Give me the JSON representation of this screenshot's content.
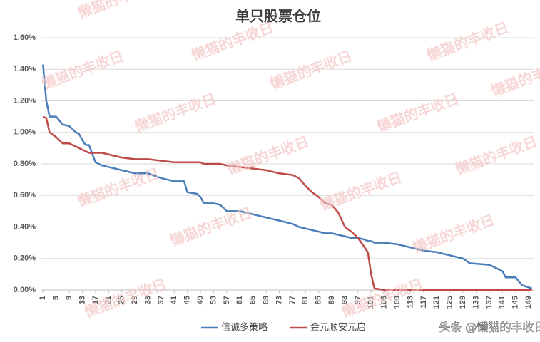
{
  "chart_data": {
    "type": "line",
    "title": "单只股票仓位",
    "x": [
      1,
      2,
      3,
      5,
      7,
      9,
      11,
      12,
      13,
      14,
      15,
      17,
      19,
      21,
      25,
      29,
      33,
      37,
      41,
      44,
      45,
      48,
      49,
      50,
      53,
      55,
      57,
      61,
      65,
      69,
      73,
      77,
      79,
      81,
      83,
      85,
      87,
      89,
      91,
      93,
      95,
      97,
      99,
      100,
      101,
      102,
      105,
      109,
      113,
      117,
      121,
      125,
      129,
      131,
      137,
      141,
      142,
      145,
      147,
      150
    ],
    "series": [
      {
        "name": "信诚多策略",
        "color": "#4a7ebb",
        "values": [
          1.43,
          1.2,
          1.1,
          1.1,
          1.05,
          1.04,
          1.0,
          0.99,
          0.95,
          0.92,
          0.92,
          0.81,
          0.79,
          0.78,
          0.76,
          0.74,
          0.74,
          0.71,
          0.69,
          0.69,
          0.62,
          0.61,
          0.59,
          0.55,
          0.55,
          0.54,
          0.5,
          0.5,
          0.48,
          0.46,
          0.44,
          0.42,
          0.4,
          0.39,
          0.38,
          0.37,
          0.36,
          0.36,
          0.35,
          0.34,
          0.33,
          0.33,
          0.32,
          0.31,
          0.31,
          0.3,
          0.3,
          0.29,
          0.27,
          0.25,
          0.24,
          0.22,
          0.2,
          0.17,
          0.16,
          0.12,
          0.08,
          0.08,
          0.03,
          0.01
        ]
      },
      {
        "name": "金元顺安元启",
        "color": "#be4b48",
        "values": [
          1.1,
          1.09,
          1.0,
          0.97,
          0.93,
          0.93,
          0.91,
          0.9,
          0.89,
          0.88,
          0.87,
          0.87,
          0.87,
          0.86,
          0.84,
          0.83,
          0.83,
          0.82,
          0.81,
          0.81,
          0.81,
          0.81,
          0.81,
          0.8,
          0.8,
          0.8,
          0.79,
          0.78,
          0.77,
          0.76,
          0.74,
          0.73,
          0.71,
          0.66,
          0.62,
          0.59,
          0.55,
          0.54,
          0.49,
          0.4,
          0.37,
          0.33,
          0.27,
          0.24,
          0.1,
          0.01,
          0,
          0,
          0,
          0,
          0,
          0,
          0,
          0,
          0,
          0,
          0,
          0,
          0,
          0
        ]
      }
    ],
    "xlim": [
      0.5,
      150.5
    ],
    "xticks": [
      1,
      5,
      9,
      13,
      17,
      21,
      25,
      29,
      33,
      37,
      41,
      45,
      49,
      53,
      57,
      61,
      65,
      69,
      73,
      77,
      81,
      85,
      89,
      93,
      97,
      101,
      105,
      109,
      113,
      117,
      121,
      125,
      129,
      133,
      137,
      141,
      145,
      149
    ],
    "ylim": [
      0,
      1.6
    ],
    "yticks": [
      {
        "value": 0,
        "label": "0.00%"
      },
      {
        "value": 0.2,
        "label": "0.20%"
      },
      {
        "value": 0.4,
        "label": "0.40%"
      },
      {
        "value": 0.6,
        "label": "0.60%"
      },
      {
        "value": 0.8,
        "label": "0.80%"
      },
      {
        "value": 1.0,
        "label": "1.00%"
      },
      {
        "value": 1.2,
        "label": "1.20%"
      },
      {
        "value": 1.4,
        "label": "1.40%"
      },
      {
        "value": 1.6,
        "label": "1.60%"
      }
    ],
    "grid": true,
    "legend": "bottom"
  },
  "watermark": "懒猫的丰收日",
  "credit": "头条 @懒猫的丰收日"
}
